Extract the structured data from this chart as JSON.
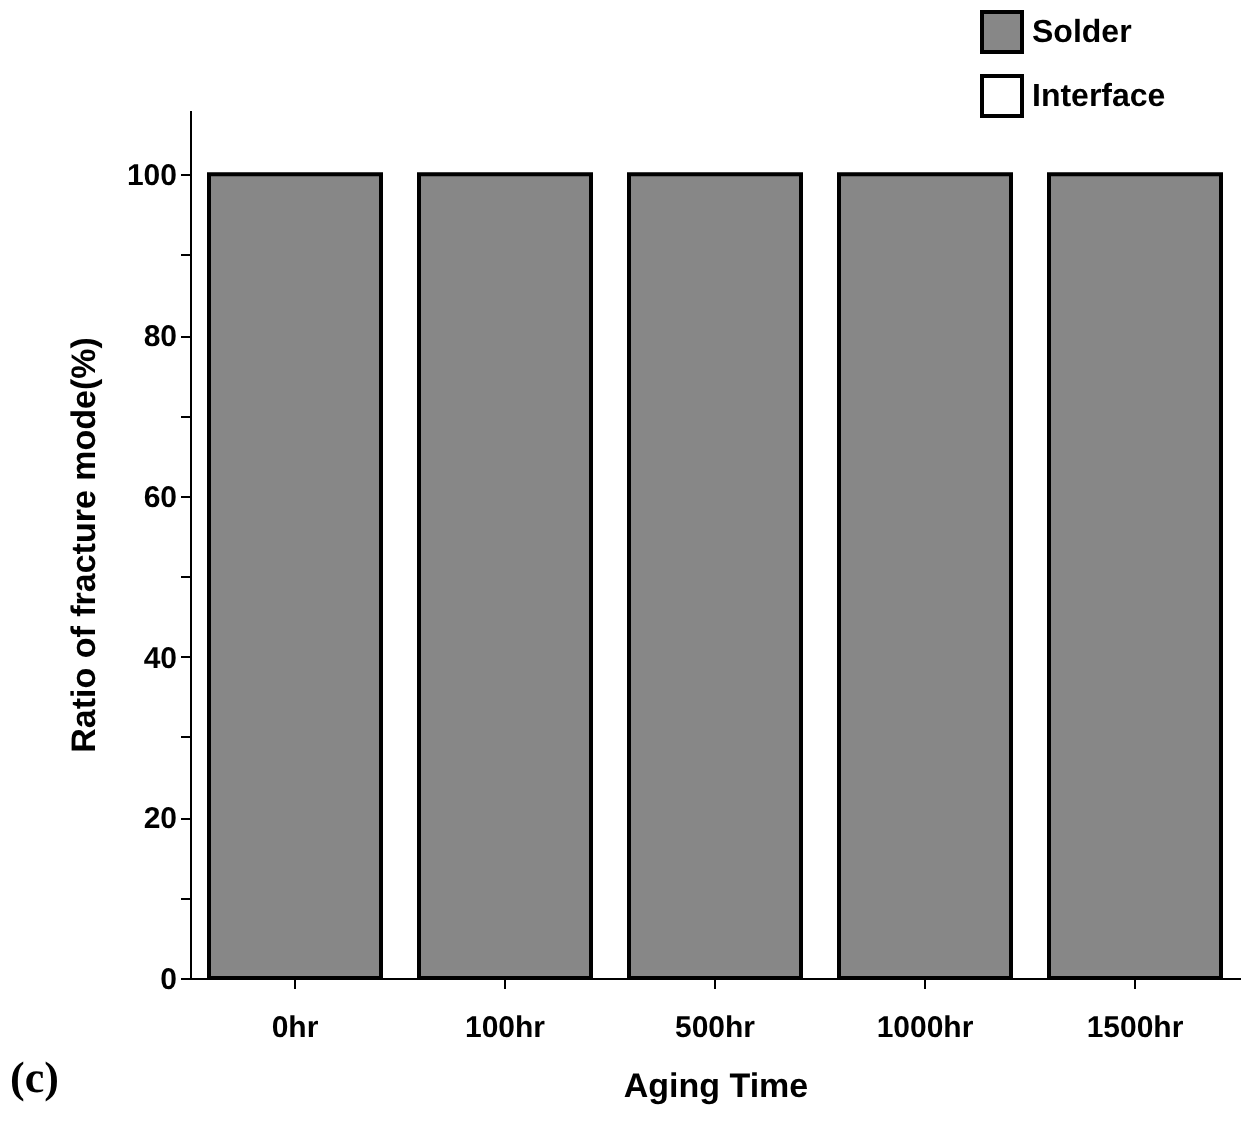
{
  "chart_data": {
    "type": "bar",
    "xlabel": "Aging Time",
    "ylabel": "Ratio of fracture mode(%)",
    "categories": [
      "0hr",
      "100hr",
      "500hr",
      "1000hr",
      "1500hr"
    ],
    "series": [
      {
        "name": "Solder",
        "color": "#878787",
        "values": [
          100,
          100,
          100,
          100,
          100
        ]
      },
      {
        "name": "Interface",
        "color": "#ffffff",
        "values": [
          0,
          0,
          0,
          0,
          0
        ]
      }
    ],
    "ylim": [
      0,
      108
    ],
    "yticks": [
      0,
      {
        "value": 10,
        "label": null
      },
      20,
      {
        "value": 30,
        "label": null
      },
      40,
      {
        "value": 50,
        "label": null
      },
      60,
      {
        "value": 70,
        "label": null
      },
      80,
      {
        "value": 90,
        "label": null
      },
      100
    ],
    "legend": "top right",
    "grid": false,
    "annotations": [
      "(c)"
    ]
  }
}
